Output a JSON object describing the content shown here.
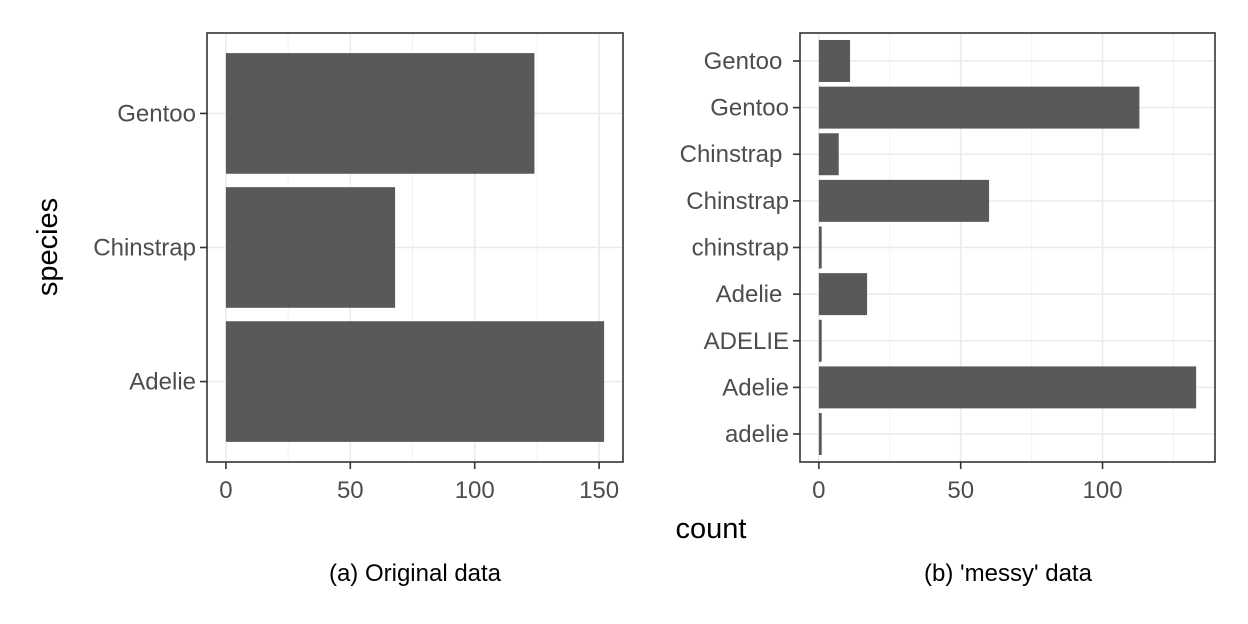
{
  "figure": {
    "shared_xlabel": "count",
    "shared_ylabel": "species"
  },
  "chart_data": [
    {
      "type": "bar",
      "orientation": "horizontal",
      "caption": "(a) Original data",
      "categories": [
        "Adelie",
        "Chinstrap",
        "Gentoo"
      ],
      "values": [
        152,
        68,
        124
      ],
      "xlim": [
        -7.6,
        159.6
      ],
      "xticks": [
        0,
        50,
        100,
        150
      ],
      "grid": true,
      "bar_color": "#595959"
    },
    {
      "type": "bar",
      "orientation": "horizontal",
      "caption": "(b) 'messy' data",
      "categories": [
        "adelie",
        "Adelie",
        "ADELIE",
        "Adelie ",
        "chinstrap",
        "Chinstrap",
        "Chinstrap ",
        "Gentoo",
        "Gentoo "
      ],
      "values": [
        1,
        133,
        1,
        17,
        1,
        60,
        7,
        113,
        11
      ],
      "xlim": [
        -6.65,
        139.65
      ],
      "xticks": [
        0,
        50,
        100
      ],
      "grid": true,
      "bar_color": "#595959"
    }
  ]
}
